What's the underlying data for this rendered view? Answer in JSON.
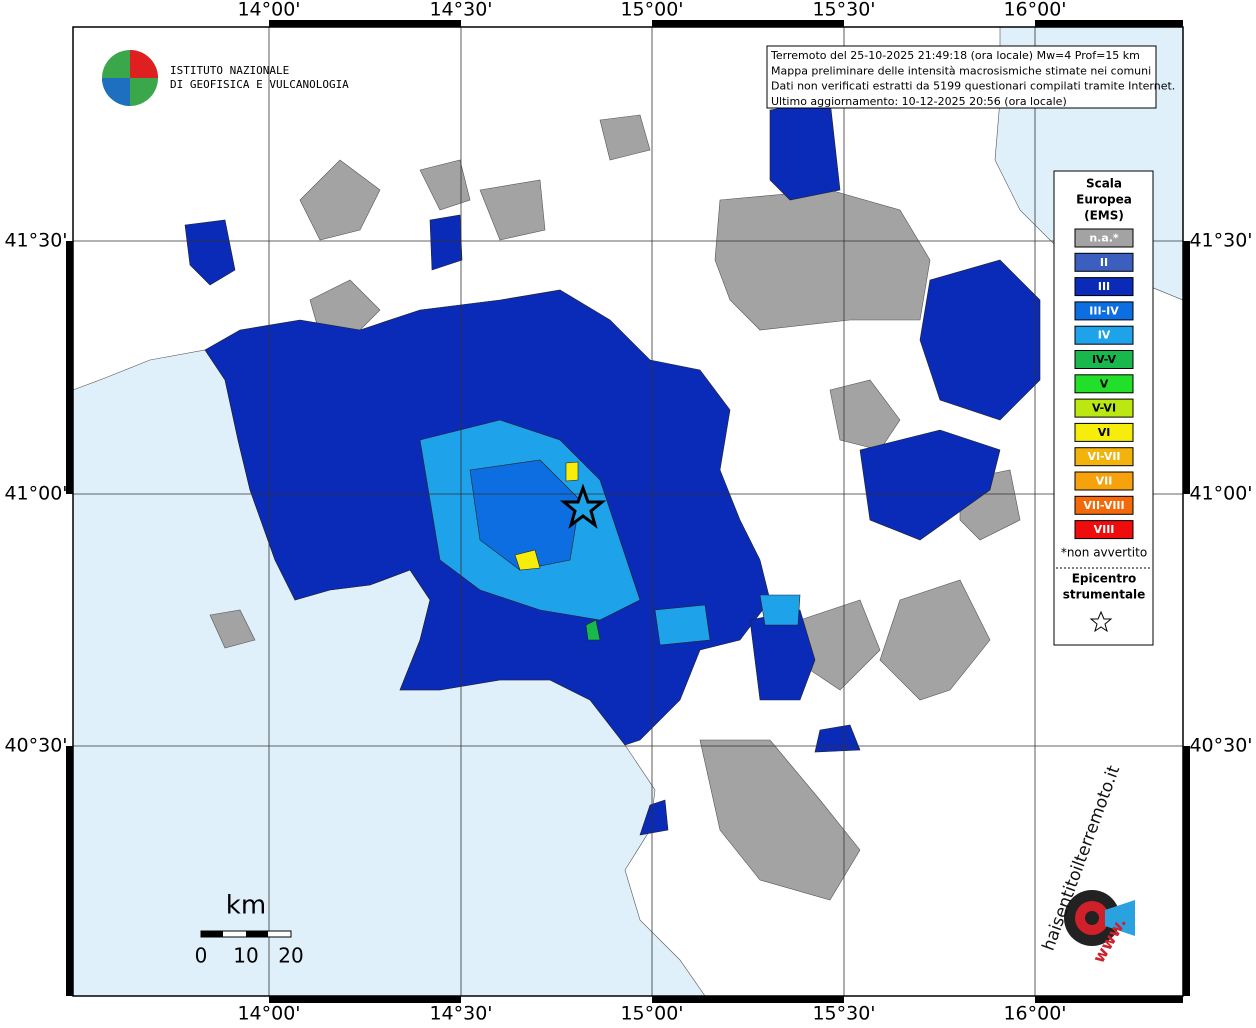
{
  "info_box": {
    "lines": [
      "Terremoto del 25-10-2025 21:49:18 (ora locale) Mw=4 Prof=15 km",
      "Mappa preliminare delle intensità macrosismiche stimate nei comuni",
      "Dati non verificati estratti da 5199 questionari compilati tramite Internet.",
      "Ultimo aggiornamento: 10-12-2025 20:56 (ora locale)"
    ]
  },
  "logo": {
    "line1": "ISTITUTO NAZIONALE",
    "line2": "DI GEOFISICA E VULCANOLOGIA"
  },
  "map": {
    "lon_labels": [
      "14°00'",
      "14°30'",
      "15°00'",
      "15°30'",
      "16°00'"
    ],
    "lat_labels": [
      "41°30'",
      "41°00'",
      "40°30'"
    ]
  },
  "legend": {
    "title_lines": [
      "Scala",
      "Europea",
      "(EMS)"
    ],
    "items": [
      {
        "label": "n.a.*",
        "color": "#a3a3a3"
      },
      {
        "label": "II",
        "color": "#3c5fbf"
      },
      {
        "label": "III",
        "color": "#0a2ab8"
      },
      {
        "label": "III-IV",
        "color": "#0c6ee0"
      },
      {
        "label": "IV",
        "color": "#1ea2ea"
      },
      {
        "label": "IV-V",
        "color": "#18b84c"
      },
      {
        "label": "V",
        "color": "#22e02a"
      },
      {
        "label": "V-VI",
        "color": "#bce812"
      },
      {
        "label": "VI",
        "color": "#f6ee0a"
      },
      {
        "label": "VI-VII",
        "color": "#f2b40c"
      },
      {
        "label": "VII",
        "color": "#f7a20c"
      },
      {
        "label": "VII-VIII",
        "color": "#f46a0a"
      },
      {
        "label": "VIII",
        "color": "#ee0c0c"
      }
    ],
    "note": "*non avvertito",
    "epicenter_lines": [
      "Epicentro",
      "strumentale"
    ]
  },
  "scale_bar": {
    "unit": "km",
    "ticks": [
      "0",
      "10",
      "20"
    ]
  },
  "watermark": {
    "site": "haisentitoilterremoto.it",
    "prefix": "www."
  }
}
